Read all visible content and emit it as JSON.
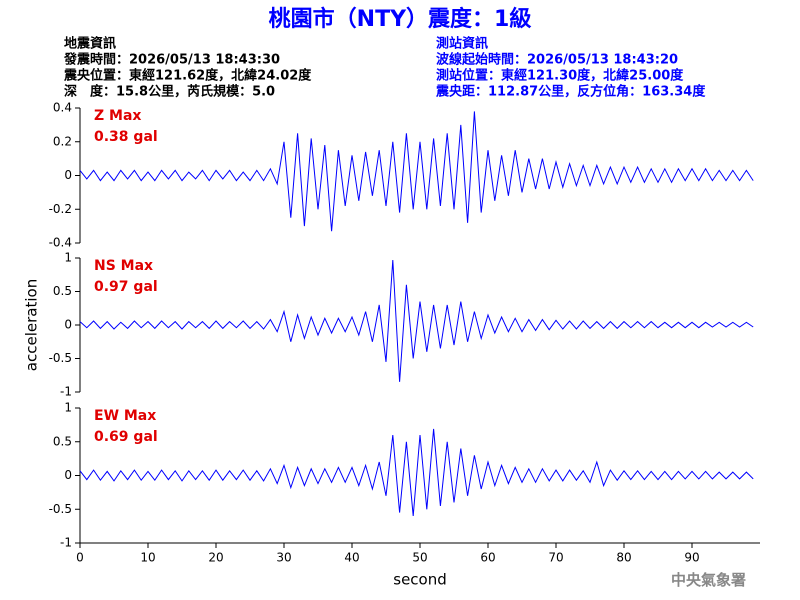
{
  "header": {
    "title": "桃園市（NTY）震度：1級",
    "left": [
      "地震資訊",
      "發震時間：2026/05/13 18:43:30",
      "震央位置：東經121.62度，北緯24.02度",
      "深　度：15.8公里，芮氏規模：5.0"
    ],
    "right": [
      "測站資訊",
      "波線起始時間：2026/05/13 18:43:20",
      "測站位置：東經121.30度，北緯25.00度",
      "震央距：112.87公里，反方位角：163.34度"
    ]
  },
  "footer": "中央氣象署",
  "chart_data": [
    {
      "type": "line",
      "label": "Z Max",
      "max_label": "0.38 gal",
      "color": "#0000ff",
      "xlim": [
        0,
        100
      ],
      "ylim": [
        -0.4,
        0.4
      ],
      "yticks": [
        0.4,
        0.2,
        0,
        -0.2,
        -0.4
      ],
      "x": [
        0,
        1,
        2,
        3,
        4,
        5,
        6,
        7,
        8,
        9,
        10,
        11,
        12,
        13,
        14,
        15,
        16,
        17,
        18,
        19,
        20,
        21,
        22,
        23,
        24,
        25,
        26,
        27,
        28,
        29,
        30,
        31,
        32,
        33,
        34,
        35,
        36,
        37,
        38,
        39,
        40,
        41,
        42,
        43,
        44,
        45,
        46,
        47,
        48,
        49,
        50,
        51,
        52,
        53,
        54,
        55,
        56,
        57,
        58,
        59,
        60,
        61,
        62,
        63,
        64,
        65,
        66,
        67,
        68,
        69,
        70,
        71,
        72,
        73,
        74,
        75,
        76,
        77,
        78,
        79,
        80,
        81,
        82,
        83,
        84,
        85,
        86,
        87,
        88,
        89,
        90,
        91,
        92,
        93,
        94,
        95,
        96,
        97,
        98,
        99
      ],
      "values": [
        0.03,
        -0.02,
        0.03,
        -0.03,
        0.02,
        -0.03,
        0.03,
        -0.02,
        0.03,
        -0.03,
        0.02,
        -0.03,
        0.03,
        -0.02,
        0.03,
        -0.03,
        0.02,
        -0.02,
        0.03,
        -0.03,
        0.03,
        -0.02,
        0.03,
        -0.03,
        0.02,
        -0.03,
        0.03,
        -0.03,
        0.04,
        -0.05,
        0.2,
        -0.25,
        0.25,
        -0.3,
        0.22,
        -0.2,
        0.18,
        -0.33,
        0.15,
        -0.18,
        0.12,
        -0.15,
        0.14,
        -0.12,
        0.15,
        -0.18,
        0.2,
        -0.22,
        0.25,
        -0.2,
        0.2,
        -0.2,
        0.22,
        -0.18,
        0.25,
        -0.2,
        0.3,
        -0.28,
        0.38,
        -0.22,
        0.15,
        -0.15,
        0.12,
        -0.12,
        0.15,
        -0.1,
        0.1,
        -0.08,
        0.1,
        -0.08,
        0.08,
        -0.07,
        0.07,
        -0.06,
        0.06,
        -0.06,
        0.06,
        -0.05,
        0.05,
        -0.05,
        0.05,
        -0.04,
        0.05,
        -0.04,
        0.04,
        -0.04,
        0.04,
        -0.04,
        0.04,
        -0.03,
        0.04,
        -0.03,
        0.04,
        -0.03,
        0.03,
        -0.03,
        0.03,
        -0.03,
        0.03,
        -0.03
      ]
    },
    {
      "type": "line",
      "label": "NS Max",
      "max_label": "0.97 gal",
      "color": "#0000ff",
      "xlim": [
        0,
        100
      ],
      "ylim": [
        -1,
        1
      ],
      "yticks": [
        1,
        0.5,
        0,
        -0.5,
        -1
      ],
      "y_label": "acceleration",
      "x": [
        0,
        1,
        2,
        3,
        4,
        5,
        6,
        7,
        8,
        9,
        10,
        11,
        12,
        13,
        14,
        15,
        16,
        17,
        18,
        19,
        20,
        21,
        22,
        23,
        24,
        25,
        26,
        27,
        28,
        29,
        30,
        31,
        32,
        33,
        34,
        35,
        36,
        37,
        38,
        39,
        40,
        41,
        42,
        43,
        44,
        45,
        46,
        47,
        48,
        49,
        50,
        51,
        52,
        53,
        54,
        55,
        56,
        57,
        58,
        59,
        60,
        61,
        62,
        63,
        64,
        65,
        66,
        67,
        68,
        69,
        70,
        71,
        72,
        73,
        74,
        75,
        76,
        77,
        78,
        79,
        80,
        81,
        82,
        83,
        84,
        85,
        86,
        87,
        88,
        89,
        90,
        91,
        92,
        93,
        94,
        95,
        96,
        97,
        98,
        99
      ],
      "values": [
        0.05,
        -0.04,
        0.06,
        -0.05,
        0.05,
        -0.06,
        0.04,
        -0.05,
        0.06,
        -0.04,
        0.05,
        -0.05,
        0.06,
        -0.04,
        0.05,
        -0.06,
        0.05,
        -0.04,
        0.05,
        -0.05,
        0.06,
        -0.05,
        0.05,
        -0.04,
        0.06,
        -0.05,
        0.05,
        -0.06,
        0.08,
        -0.1,
        0.2,
        -0.25,
        0.15,
        -0.2,
        0.12,
        -0.15,
        0.1,
        -0.12,
        0.1,
        -0.1,
        0.12,
        -0.15,
        0.2,
        -0.25,
        0.3,
        -0.55,
        0.97,
        -0.85,
        0.6,
        -0.5,
        0.35,
        -0.4,
        0.3,
        -0.35,
        0.3,
        -0.3,
        0.35,
        -0.25,
        0.2,
        -0.2,
        0.15,
        -0.12,
        0.12,
        -0.1,
        0.1,
        -0.1,
        0.08,
        -0.08,
        0.08,
        -0.07,
        0.07,
        -0.06,
        0.06,
        -0.06,
        0.06,
        -0.05,
        0.05,
        -0.05,
        0.05,
        -0.05,
        0.05,
        -0.04,
        0.05,
        -0.04,
        0.05,
        -0.04,
        0.04,
        -0.04,
        0.04,
        -0.04,
        0.04,
        -0.04,
        0.04,
        -0.03,
        0.04,
        -0.03,
        0.04,
        -0.03,
        0.04,
        -0.03
      ]
    },
    {
      "type": "line",
      "label": "EW Max",
      "max_label": "0.69 gal",
      "color": "#0000ff",
      "xlim": [
        0,
        100
      ],
      "ylim": [
        -1,
        1
      ],
      "yticks": [
        1,
        0.5,
        0,
        -0.5,
        -1
      ],
      "x_label": "second",
      "xticks": [
        0,
        10,
        20,
        30,
        40,
        50,
        60,
        70,
        80,
        90
      ],
      "x": [
        0,
        1,
        2,
        3,
        4,
        5,
        6,
        7,
        8,
        9,
        10,
        11,
        12,
        13,
        14,
        15,
        16,
        17,
        18,
        19,
        20,
        21,
        22,
        23,
        24,
        25,
        26,
        27,
        28,
        29,
        30,
        31,
        32,
        33,
        34,
        35,
        36,
        37,
        38,
        39,
        40,
        41,
        42,
        43,
        44,
        45,
        46,
        47,
        48,
        49,
        50,
        51,
        52,
        53,
        54,
        55,
        56,
        57,
        58,
        59,
        60,
        61,
        62,
        63,
        64,
        65,
        66,
        67,
        68,
        69,
        70,
        71,
        72,
        73,
        74,
        75,
        76,
        77,
        78,
        79,
        80,
        81,
        82,
        83,
        84,
        85,
        86,
        87,
        88,
        89,
        90,
        91,
        92,
        93,
        94,
        95,
        96,
        97,
        98,
        99
      ],
      "values": [
        0.07,
        -0.06,
        0.08,
        -0.07,
        0.06,
        -0.08,
        0.07,
        -0.06,
        0.08,
        -0.07,
        0.06,
        -0.07,
        0.08,
        -0.06,
        0.07,
        -0.08,
        0.07,
        -0.06,
        0.07,
        -0.07,
        0.08,
        -0.07,
        0.07,
        -0.06,
        0.08,
        -0.07,
        0.07,
        -0.08,
        0.1,
        -0.12,
        0.15,
        -0.18,
        0.12,
        -0.15,
        0.1,
        -0.12,
        0.1,
        -0.1,
        0.12,
        -0.1,
        0.12,
        -0.15,
        0.15,
        -0.2,
        0.2,
        -0.3,
        0.6,
        -0.55,
        0.5,
        -0.6,
        0.6,
        -0.5,
        0.69,
        -0.45,
        0.5,
        -0.4,
        0.4,
        -0.3,
        0.3,
        -0.2,
        0.2,
        -0.15,
        0.15,
        -0.12,
        0.12,
        -0.1,
        0.1,
        -0.1,
        0.1,
        -0.08,
        0.08,
        -0.08,
        0.08,
        -0.07,
        0.07,
        -0.1,
        0.2,
        -0.15,
        0.08,
        -0.07,
        0.07,
        -0.06,
        0.07,
        -0.06,
        0.06,
        -0.06,
        0.06,
        -0.06,
        0.06,
        -0.05,
        0.06,
        -0.05,
        0.06,
        -0.05,
        0.05,
        -0.05,
        0.05,
        -0.05,
        0.05,
        -0.05
      ]
    }
  ]
}
